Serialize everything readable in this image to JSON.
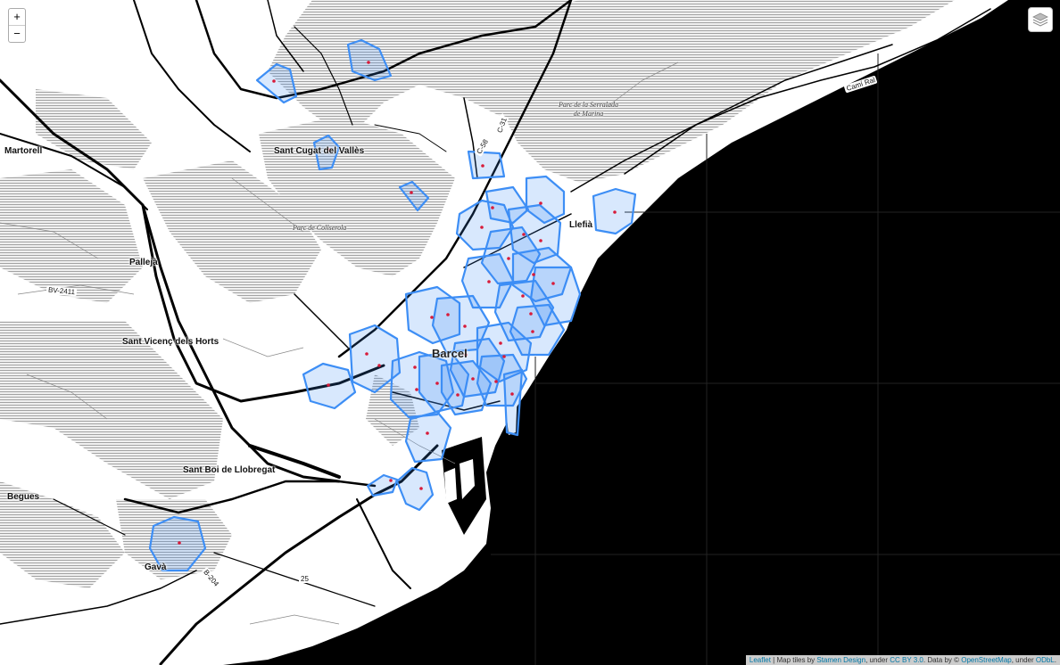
{
  "controls": {
    "zoom_in": "+",
    "zoom_out": "−",
    "layers_icon": "layers-icon"
  },
  "places": {
    "martorell": "Martorell",
    "sant_cugat": "Sant Cugat del Vallès",
    "pallejà": "Pallejà",
    "sant_vicenc": "Sant Vicenç dels Horts",
    "sant_boi": "Sant Boi de Llobregat",
    "begues": "Begues",
    "gava": "Gavà",
    "llefia": "Llefià",
    "barcelona": "Barcel"
  },
  "parks": {
    "serralada": "Parc de la Serralada\nde Marina",
    "collserola": "Parc de Collserola"
  },
  "roads": {
    "cami_ral": "Camí Ral",
    "bv2411": "BV-2411",
    "c58": "C-58",
    "c31": "C-31",
    "b204": "B-204",
    "b25": "25"
  },
  "colors": {
    "land": "#ffffff",
    "sea": "#000000",
    "hatch": "#c8c8c8",
    "polygon_stroke": "#3d8ef5",
    "polygon_fill": "#3d8ef5",
    "marker": "#d81b3a"
  },
  "attribution": {
    "leaflet": "Leaflet",
    "sep1": " | Map tiles by ",
    "stamen": "Stamen Design",
    "sep2": ", under ",
    "ccby": "CC BY 3.0",
    "sep3": ". Data by © ",
    "osm": "OpenStreetMap",
    "sep4": ", under ",
    "odbl": "ODbL"
  }
}
